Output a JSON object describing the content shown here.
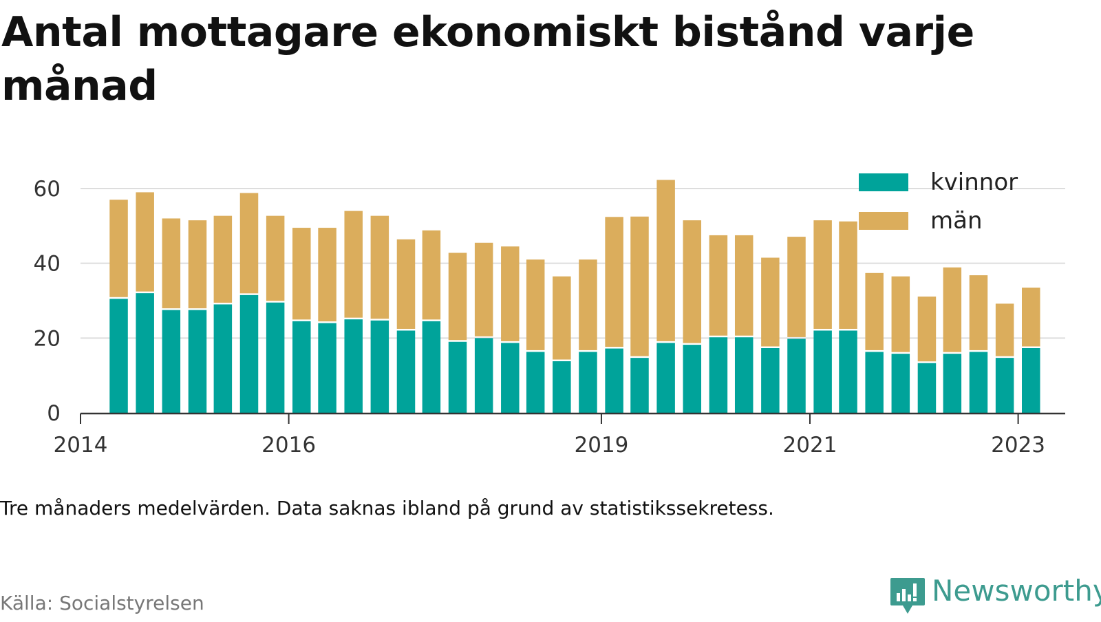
{
  "title": "Antal mottagare ekonomiskt bistånd varje månad",
  "note": "Tre månaders medelvärden. Data saknas ibland på grund av statistikssekretess.",
  "source": "Källa: Socialstyrelsen",
  "brand": {
    "name": "Newsworthy",
    "icon": "bar-chart-speech-bubble-icon",
    "color": "#3d9b8f"
  },
  "colors": {
    "kvinnor": "#00a39a",
    "man": "#dbad5c",
    "grid": "#dddddd",
    "axis": "#333333"
  },
  "chart_data": {
    "type": "bar",
    "stacked": true,
    "x_start": "2014-01-01",
    "x_end": "2023-06-15",
    "x_ticks": [
      {
        "date": "2014-01-01",
        "label": "2014"
      },
      {
        "date": "2016-01-01",
        "label": "2016"
      },
      {
        "date": "2019-01-01",
        "label": "2019"
      },
      {
        "date": "2021-01-01",
        "label": "2021"
      },
      {
        "date": "2023-01-01",
        "label": "2023"
      }
    ],
    "ylim": [
      0,
      67
    ],
    "yticks": [
      0,
      20,
      40,
      60
    ],
    "grid": true,
    "legend_position": "top-right",
    "dates": [
      "2014-05",
      "2014-08",
      "2014-11",
      "2015-02",
      "2015-05",
      "2015-08",
      "2015-11",
      "2016-02",
      "2016-05",
      "2016-08",
      "2016-11",
      "2017-02",
      "2017-05",
      "2017-08",
      "2017-11",
      "2018-02",
      "2018-05",
      "2018-08",
      "2018-11",
      "2019-02",
      "2019-05",
      "2019-08",
      "2019-11",
      "2020-02",
      "2020-05",
      "2020-08",
      "2020-11",
      "2021-02",
      "2021-05",
      "2021-08",
      "2021-11",
      "2022-02",
      "2022-05",
      "2022-08",
      "2022-11",
      "2023-02",
      "2023-05"
    ],
    "series": [
      {
        "name": "kvinnor",
        "color": "#00a39a",
        "values": [
          30.5,
          32,
          27.5,
          27.5,
          29,
          31.5,
          29.5,
          24.5,
          24,
          25,
          24.7,
          22,
          24.5,
          19,
          20,
          18.7,
          16.3,
          13.8,
          16.3,
          17.2,
          14.7,
          18.7,
          18.2,
          20.2,
          20.2,
          17.3,
          19.8,
          22,
          22,
          16.3,
          15.8,
          13.3,
          15.8,
          16.3,
          14.7,
          17.3,
          null
        ]
      },
      {
        "name": "män",
        "color": "#dbad5c",
        "values": [
          26.5,
          27,
          24.5,
          24,
          23.7,
          27.3,
          23.2,
          25,
          25.5,
          29,
          28,
          24.4,
          24.3,
          23.8,
          25.5,
          25.8,
          24.7,
          22.7,
          24.7,
          35.2,
          37.8,
          43.6,
          33.3,
          27.3,
          27.3,
          24.2,
          27.3,
          29.5,
          29.2,
          21.1,
          20.7,
          17.8,
          23.1,
          20.5,
          14.5,
          16.2,
          null
        ]
      }
    ]
  },
  "legend": [
    {
      "label": "kvinnor",
      "color": "#00a39a"
    },
    {
      "label": "män",
      "color": "#dbad5c"
    }
  ]
}
